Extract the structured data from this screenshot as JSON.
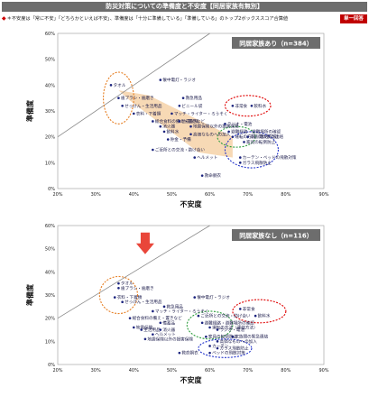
{
  "header": {
    "title": "防災対策についての準備度と不安度【同居家族有無別】",
    "note": "＊不安度は「常に不安」「どちらかといえば不安」、準備度は「十分に準備している」「準備している」のトップ2ボックススコア合算値",
    "badge": "単一回答"
  },
  "colors": {
    "point": "#1a237e",
    "orange": "#e67e22",
    "red": "#e00000",
    "green": "#2e9e3e",
    "blue": "#2233cc",
    "arrow": "#e9463a",
    "band": "#f6d2a8",
    "title_box": "#6d6d6d"
  },
  "chart_data": [
    {
      "type": "scatter",
      "title": "同居家族あり（n=384）",
      "xlabel": "不安度",
      "ylabel": "準備度",
      "xlim": [
        20,
        90
      ],
      "ylim": [
        0,
        60
      ],
      "x_ticks": [
        "20%",
        "30%",
        "40%",
        "50%",
        "60%",
        "70%",
        "80%",
        "90%"
      ],
      "y_ticks": [
        "0%",
        "10%",
        "20%",
        "30%",
        "40%",
        "50%",
        "60%"
      ],
      "points": [
        {
          "label": "タオル",
          "x": 34,
          "y": 40
        },
        {
          "label": "歯ブラシ・歯磨き",
          "x": 36,
          "y": 35
        },
        {
          "label": "せっけん・生活用品",
          "x": 37,
          "y": 32
        },
        {
          "label": "衣料・下着類",
          "x": 40,
          "y": 29
        },
        {
          "label": "懐中電灯・ラジオ",
          "x": 47,
          "y": 42
        },
        {
          "label": "救急用品",
          "x": 53,
          "y": 35
        },
        {
          "label": "ビニール袋",
          "x": 52,
          "y": 32
        },
        {
          "label": "マッチ・ライター・ろうそく",
          "x": 50,
          "y": 29
        },
        {
          "label": "総合食料の備え・置きなど",
          "x": 45,
          "y": 26
        },
        {
          "label": "地震保険",
          "x": 52,
          "y": 26
        },
        {
          "label": "地震保険以外の損害保険",
          "x": 55,
          "y": 24
        },
        {
          "label": "高価なものへの加入",
          "x": 55,
          "y": 21
        },
        {
          "label": "消火器",
          "x": 47,
          "y": 24
        },
        {
          "label": "飲料水",
          "x": 48,
          "y": 22
        },
        {
          "label": "貯金・予備",
          "x": 49,
          "y": 19
        },
        {
          "label": "ご近所との交流・助け合い",
          "x": 45,
          "y": 15
        },
        {
          "label": "ヘルメット",
          "x": 56,
          "y": 12
        },
        {
          "label": "救命胴衣",
          "x": 58,
          "y": 5
        },
        {
          "label": "非常食",
          "x": 66,
          "y": 32
        },
        {
          "label": "飲料水",
          "x": 71,
          "y": 32
        },
        {
          "label": "ラジオ・電池",
          "x": 64,
          "y": 25
        },
        {
          "label": "避難経路・避難場所の確認",
          "x": 65,
          "y": 22
        },
        {
          "label": "運転の方法（連絡方法）",
          "x": 66,
          "y": 20
        },
        {
          "label": "家族間の緊急連絡",
          "x": 70,
          "y": 20
        },
        {
          "label": "家具の転倒防止",
          "x": 69,
          "y": 18
        },
        {
          "label": "カーテン・ベッドの飛散対策",
          "x": 68,
          "y": 12
        },
        {
          "label": "ガラス飛散防止",
          "x": 68,
          "y": 10
        }
      ]
    },
    {
      "type": "scatter",
      "title": "同居家族なし（n=116）",
      "xlabel": "不安度",
      "ylabel": "準備度",
      "xlim": [
        20,
        90
      ],
      "ylim": [
        0,
        60
      ],
      "x_ticks": [
        "20%",
        "30%",
        "40%",
        "50%",
        "60%",
        "70%",
        "80%",
        "90%"
      ],
      "y_ticks": [
        "0%",
        "10%",
        "20%",
        "30%",
        "40%",
        "50%",
        "60%"
      ],
      "points": [
        {
          "label": "タオル",
          "x": 36,
          "y": 35
        },
        {
          "label": "歯ブラシ・歯磨き",
          "x": 36,
          "y": 33
        },
        {
          "label": "衣料・下着類",
          "x": 35,
          "y": 29
        },
        {
          "label": "せっけん・生活用品",
          "x": 37,
          "y": 27
        },
        {
          "label": "懐中電灯・ラジオ",
          "x": 56,
          "y": 29
        },
        {
          "label": "救急用品",
          "x": 48,
          "y": 25
        },
        {
          "label": "マッチ・ライター・ろうそく",
          "x": 45,
          "y": 23
        },
        {
          "label": "総合食料の備え・置きなど",
          "x": 39,
          "y": 20
        },
        {
          "label": "備蓄品",
          "x": 47,
          "y": 18
        },
        {
          "label": "地震保険",
          "x": 40,
          "y": 16
        },
        {
          "label": "生活用品",
          "x": 42,
          "y": 15
        },
        {
          "label": "消火器",
          "x": 47,
          "y": 15
        },
        {
          "label": "ヘルメット",
          "x": 45,
          "y": 13
        },
        {
          "label": "地震保険以外の損害保険",
          "x": 43,
          "y": 11
        },
        {
          "label": "救命胴衣",
          "x": 52,
          "y": 5
        },
        {
          "label": "非常食",
          "x": 68,
          "y": 24
        },
        {
          "label": "飲料水",
          "x": 72,
          "y": 21
        },
        {
          "label": "ご近所との交流・助け合い",
          "x": 57,
          "y": 21
        },
        {
          "label": "避難経路・避難場所の確認",
          "x": 58,
          "y": 18
        },
        {
          "label": "運転の方法（連絡方法）",
          "x": 60,
          "y": 16
        },
        {
          "label": "ラジオ・電池",
          "x": 62,
          "y": 15
        },
        {
          "label": "家族間の緊急連絡",
          "x": 66,
          "y": 12
        },
        {
          "label": "家具の転倒防止",
          "x": 59,
          "y": 12
        },
        {
          "label": "高価なものへの加入",
          "x": 62,
          "y": 10
        },
        {
          "label": "カーテン",
          "x": 60,
          "y": 8
        },
        {
          "label": "ガラス飛散防止",
          "x": 62,
          "y": 7
        },
        {
          "label": "ベッドの飛散対策",
          "x": 60,
          "y": 5
        }
      ]
    }
  ]
}
